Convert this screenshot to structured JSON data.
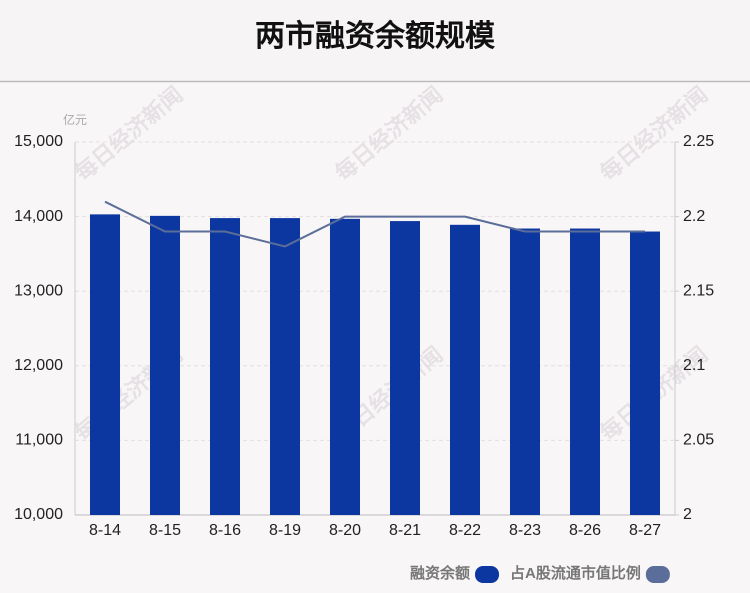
{
  "chart_data": {
    "type": "bar",
    "title": "两市融资余额规模",
    "y_unit": "亿元",
    "watermark": "每日经济新闻",
    "categories": [
      "8-14",
      "8-15",
      "8-16",
      "8-19",
      "8-20",
      "8-21",
      "8-22",
      "8-23",
      "8-26",
      "8-27"
    ],
    "series": [
      {
        "name": "融资余额",
        "type": "bar",
        "color": "#0d37a0",
        "values": [
          14030,
          14010,
          13980,
          13980,
          13970,
          13940,
          13890,
          13840,
          13840,
          13800
        ]
      },
      {
        "name": "占A股流通市值比例",
        "type": "line",
        "axis": "y2",
        "color": "#5b6e99",
        "values": [
          2.21,
          2.19,
          2.19,
          2.18,
          2.2,
          2.2,
          2.2,
          2.19,
          2.19,
          2.19
        ]
      }
    ],
    "ylim": [
      10000,
      15000
    ],
    "yticks": [
      {
        "value": 10000,
        "label": "10,000"
      },
      {
        "value": 11000,
        "label": "11,000"
      },
      {
        "value": 12000,
        "label": "12,000"
      },
      {
        "value": 13000,
        "label": "13,000"
      },
      {
        "value": 14000,
        "label": "14,000"
      },
      {
        "value": 15000,
        "label": "15,000"
      }
    ],
    "y2lim": [
      2,
      2.25
    ],
    "y2ticks": [
      2,
      2.05,
      2.1,
      2.15,
      2.2,
      2.25
    ],
    "grid": true
  }
}
